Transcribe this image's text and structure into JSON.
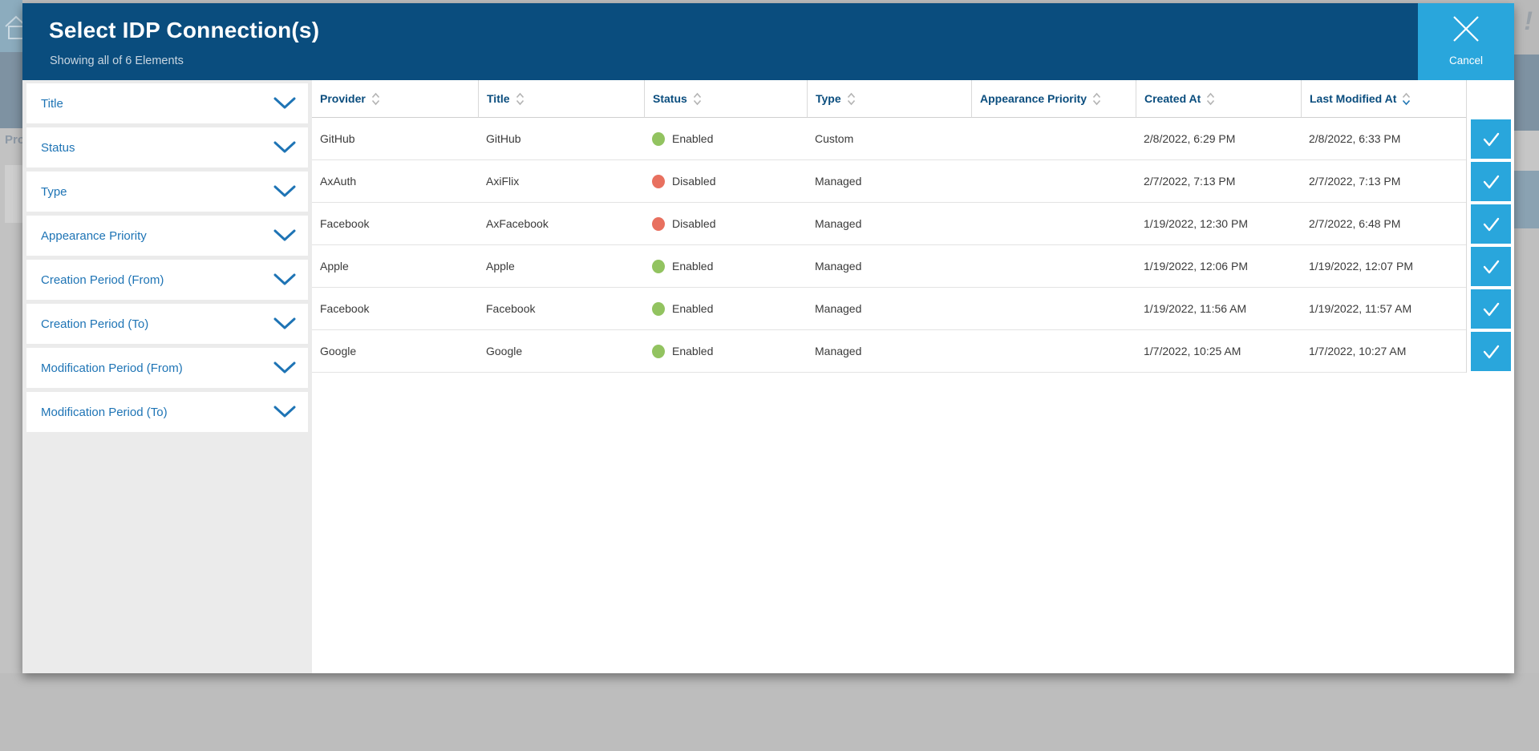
{
  "background": {
    "pro_label": "Pro",
    "exclamation_mark": "!",
    "plus_sign": "+"
  },
  "modal": {
    "title": "Select IDP Connection(s)",
    "subtitle": "Showing all of 6 Elements",
    "cancel": {
      "label": "Cancel"
    }
  },
  "filters": {
    "items": [
      {
        "label": "Title"
      },
      {
        "label": "Status"
      },
      {
        "label": "Type"
      },
      {
        "label": "Appearance Priority"
      },
      {
        "label": "Creation Period (From)"
      },
      {
        "label": "Creation Period (To)"
      },
      {
        "label": "Modification Period (From)"
      },
      {
        "label": "Modification Period (To)"
      }
    ]
  },
  "table": {
    "columns": [
      {
        "key": "provider",
        "label": "Provider",
        "sort": "none"
      },
      {
        "key": "title",
        "label": "Title",
        "sort": "none"
      },
      {
        "key": "status",
        "label": "Status",
        "sort": "none"
      },
      {
        "key": "type",
        "label": "Type",
        "sort": "none"
      },
      {
        "key": "appearance_priority",
        "label": "Appearance Priority",
        "sort": "none"
      },
      {
        "key": "created_at",
        "label": "Created At",
        "sort": "none"
      },
      {
        "key": "last_modified_at",
        "label": "Last Modified At",
        "sort": "desc"
      }
    ],
    "rows": [
      {
        "provider": "GitHub",
        "title": "GitHub",
        "status": "Enabled",
        "status_color": "#92c360",
        "type": "Custom",
        "appearance_priority": "",
        "created_at": "2/8/2022, 6:29 PM",
        "last_modified_at": "2/8/2022, 6:33 PM",
        "selected": true
      },
      {
        "provider": "AxAuth",
        "title": "AxiFlix",
        "status": "Disabled",
        "status_color": "#e8705f",
        "type": "Managed",
        "appearance_priority": "",
        "created_at": "2/7/2022, 7:13 PM",
        "last_modified_at": "2/7/2022, 7:13 PM",
        "selected": true
      },
      {
        "provider": "Facebook",
        "title": "AxFacebook",
        "status": "Disabled",
        "status_color": "#e8705f",
        "type": "Managed",
        "appearance_priority": "",
        "created_at": "1/19/2022, 12:30 PM",
        "last_modified_at": "2/7/2022, 6:48 PM",
        "selected": true
      },
      {
        "provider": "Apple",
        "title": "Apple",
        "status": "Enabled",
        "status_color": "#92c360",
        "type": "Managed",
        "appearance_priority": "",
        "created_at": "1/19/2022, 12:06 PM",
        "last_modified_at": "1/19/2022, 12:07 PM",
        "selected": true
      },
      {
        "provider": "Facebook",
        "title": "Facebook",
        "status": "Enabled",
        "status_color": "#92c360",
        "type": "Managed",
        "appearance_priority": "",
        "created_at": "1/19/2022, 11:56 AM",
        "last_modified_at": "1/19/2022, 11:57 AM",
        "selected": true
      },
      {
        "provider": "Google",
        "title": "Google",
        "status": "Enabled",
        "status_color": "#92c360",
        "type": "Managed",
        "appearance_priority": "",
        "created_at": "1/7/2022, 10:25 AM",
        "last_modified_at": "1/7/2022, 10:27 AM",
        "selected": true
      }
    ]
  },
  "colors": {
    "header_navy": "#0a4d7e",
    "accent_blue": "#29a6dc",
    "link_blue": "#1e74b5",
    "sort_active_blue": "#2076b4",
    "sort_neutral_gray": "#b3b3b3",
    "status_enabled_green": "#92c360",
    "status_disabled_red": "#e8705f"
  }
}
